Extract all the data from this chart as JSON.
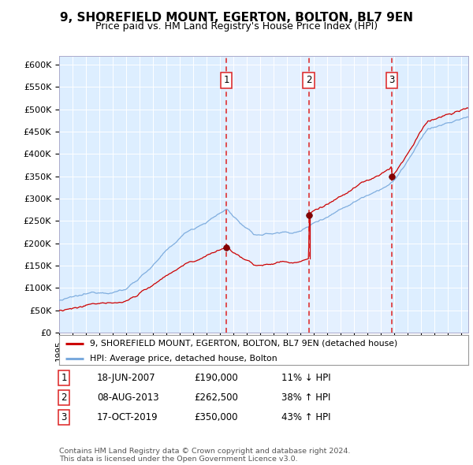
{
  "title": "9, SHOREFIELD MOUNT, EGERTON, BOLTON, BL7 9EN",
  "subtitle": "Price paid vs. HM Land Registry's House Price Index (HPI)",
  "legend_property": "9, SHOREFIELD MOUNT, EGERTON, BOLTON, BL7 9EN (detached house)",
  "legend_hpi": "HPI: Average price, detached house, Bolton",
  "ylabel_ticks": [
    "£0",
    "£50K",
    "£100K",
    "£150K",
    "£200K",
    "£250K",
    "£300K",
    "£350K",
    "£400K",
    "£450K",
    "£500K",
    "£550K",
    "£600K"
  ],
  "ytick_vals": [
    0,
    50000,
    100000,
    150000,
    200000,
    250000,
    300000,
    350000,
    400000,
    450000,
    500000,
    550000,
    600000
  ],
  "transactions": [
    {
      "num": 1,
      "date": "18-JUN-2007",
      "price": 190000,
      "pct": "11%",
      "dir": "↓"
    },
    {
      "num": 2,
      "date": "08-AUG-2013",
      "price": 262500,
      "pct": "38%",
      "dir": "↑"
    },
    {
      "num": 3,
      "date": "17-OCT-2019",
      "price": 350000,
      "pct": "43%",
      "dir": "↑"
    }
  ],
  "transaction_dates_decimal": [
    2007.46,
    2013.6,
    2019.79
  ],
  "transaction_prices": [
    190000,
    262500,
    350000
  ],
  "color_property": "#cc0000",
  "color_hpi": "#7aaadd",
  "color_vline": "#dd2222",
  "background_color": "#ddeeff",
  "plot_bg": "#ddeeff",
  "bg_highlight": "#e8f2ff",
  "footer": "Contains HM Land Registry data © Crown copyright and database right 2024.\nThis data is licensed under the Open Government Licence v3.0.",
  "xmin": 1995.0,
  "xmax": 2025.5,
  "ymin": 0,
  "ymax": 620000
}
